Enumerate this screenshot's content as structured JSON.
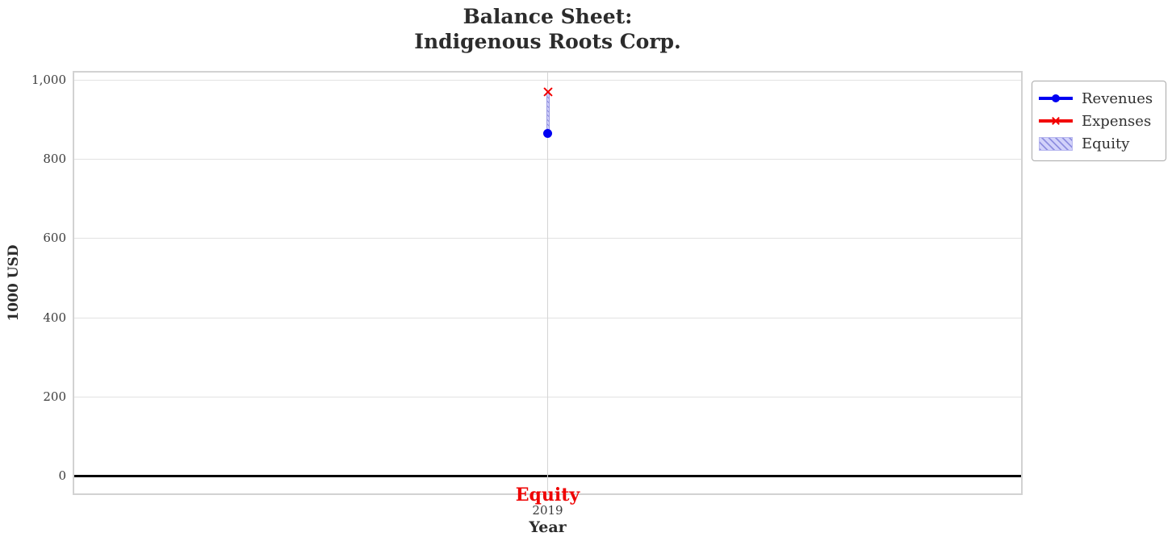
{
  "title": {
    "line1": "Balance Sheet:",
    "line2": "Indigenous Roots Corp."
  },
  "axes": {
    "x_label": "Year",
    "y_label": "1000 USD",
    "x_tick_labels": [
      "2019"
    ],
    "y_ticks": [
      {
        "value": 0,
        "label": "0"
      },
      {
        "value": 200,
        "label": "200"
      },
      {
        "value": 400,
        "label": "400"
      },
      {
        "value": 600,
        "label": "600"
      },
      {
        "value": 800,
        "label": "800"
      },
      {
        "value": 1000,
        "label": "1,000"
      }
    ]
  },
  "annotations": [
    {
      "text": "Equity",
      "color": "#ee0000",
      "x": "2019",
      "position": "below-zero-line"
    }
  ],
  "legend": {
    "items": [
      {
        "label": "Revenues",
        "marker": "circle",
        "color": "#0000ff"
      },
      {
        "label": "Expenses",
        "marker": "x",
        "color": "#ff0000"
      },
      {
        "label": "Equity",
        "type": "hatched-patch",
        "fill": "#d2d2fa",
        "hatch_color": "#8f8fe0"
      }
    ]
  },
  "chart_data": {
    "type": "line",
    "x": [
      2019
    ],
    "series": [
      {
        "name": "Revenues",
        "type": "line",
        "marker": "circle",
        "color": "#0000ff",
        "values": [
          866
        ]
      },
      {
        "name": "Expenses",
        "type": "line",
        "marker": "x",
        "color": "#ff0000",
        "values": [
          970
        ]
      },
      {
        "name": "Equity",
        "type": "bar",
        "fill": "#d2d2fa",
        "hatch_color": "#8f8fe0",
        "values": [
          -104
        ],
        "bar_drawn_between": [
          866,
          970
        ]
      }
    ],
    "title": "Balance Sheet: Indigenous Roots Corp.",
    "xlabel": "Year",
    "ylabel": "1000 USD",
    "ylim": [
      -47,
      1023
    ],
    "grid": true,
    "zero_line": true,
    "legend_position": "outside-upper-right"
  }
}
